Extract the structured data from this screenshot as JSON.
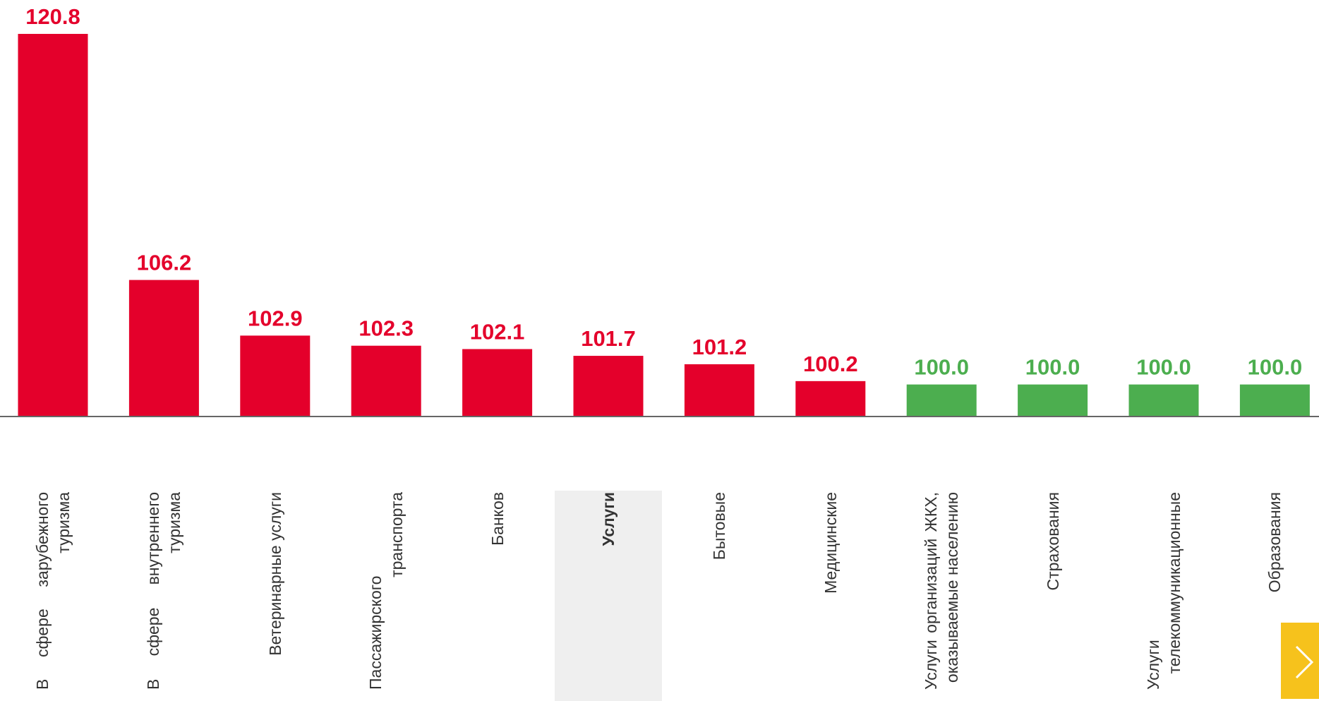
{
  "chart_data": {
    "type": "bar",
    "categories": [
      "В сфере зарубежного туризма",
      "В сфере внутреннего туризма",
      "Ветеринарные услуги",
      "Пассажирского транспорта",
      "Банков",
      "Услуги",
      "Бытовые",
      "Медицинские",
      "Услуги организаций ЖКХ, оказываемые населению",
      "Страхования",
      "Услуги телекоммуникационные",
      "Образования"
    ],
    "values": [
      120.8,
      106.2,
      102.9,
      102.3,
      102.1,
      101.7,
      101.2,
      100.2,
      100.0,
      100.0,
      100.0,
      100.0
    ],
    "value_labels": [
      "120.8",
      "106.2",
      "102.9",
      "102.3",
      "102.1",
      "101.7",
      "101.2",
      "100.2",
      "100.0",
      "100.0",
      "100.0",
      "100.0"
    ],
    "colors": [
      "#e4002b",
      "#e4002b",
      "#e4002b",
      "#e4002b",
      "#e4002b",
      "#e4002b",
      "#e4002b",
      "#e4002b",
      "#4cae4f",
      "#4cae4f",
      "#4cae4f",
      "#4cae4f"
    ],
    "ylim": [
      98.1,
      120.8
    ],
    "highlighted_index": 5
  }
}
